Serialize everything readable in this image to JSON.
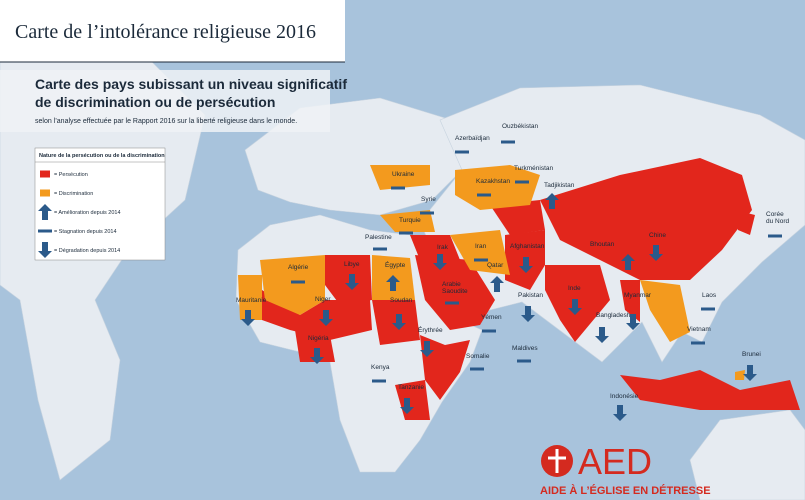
{
  "header": {
    "title": "Carte de l’intolérance religieuse 2016"
  },
  "subtitle": {
    "lines": [
      "Carte des pays subissant un niveau significatif",
      "de discrimination ou de persécution"
    ],
    "note": "selon l’analyse effectuée par le Rapport 2016 sur la liberté religieuse dans le monde."
  },
  "legend": {
    "title": "Nature de la persécution ou de la discrimination",
    "items": [
      "= Persécution",
      "= Discrimination",
      "= Amélioration depuis 2014",
      "= Stagnation depuis 2014",
      "= Dégradation depuis 2014"
    ]
  },
  "countries": [
    {
      "lines": [
        "Azerbaïdjan"
      ]
    },
    {
      "lines": [
        "Ouzbékistan"
      ]
    },
    {
      "lines": [
        "Turkménistan"
      ]
    },
    {
      "lines": [
        "Kazakhstan"
      ]
    },
    {
      "lines": [
        "Tadjikistan"
      ]
    },
    {
      "lines": [
        "Ukraine"
      ]
    },
    {
      "lines": [
        "Syrie"
      ]
    },
    {
      "lines": [
        "Turquie"
      ]
    },
    {
      "lines": [
        "Palestine"
      ]
    },
    {
      "lines": [
        "Irak"
      ]
    },
    {
      "lines": [
        "Iran"
      ]
    },
    {
      "lines": [
        "Afghanistan"
      ]
    },
    {
      "lines": [
        "Qatar"
      ]
    },
    {
      "lines": [
        "Égypte"
      ]
    },
    {
      "lines": [
        "Libye"
      ]
    },
    {
      "lines": [
        "Algérie"
      ]
    },
    {
      "lines": [
        "Mauritanie"
      ]
    },
    {
      "lines": [
        "Niger"
      ]
    },
    {
      "lines": [
        "Soudan"
      ]
    },
    {
      "lines": [
        "Arabie",
        "Saoudite"
      ]
    },
    {
      "lines": [
        "Érythrée"
      ]
    },
    {
      "lines": [
        "Nigéria"
      ]
    },
    {
      "lines": [
        "Yémen"
      ]
    },
    {
      "lines": [
        "Somalie"
      ]
    },
    {
      "lines": [
        "Kenya"
      ]
    },
    {
      "lines": [
        "Tanzanie"
      ]
    },
    {
      "lines": [
        "Pakistan"
      ]
    },
    {
      "lines": [
        "Inde"
      ]
    },
    {
      "lines": [
        "Bhoutan"
      ]
    },
    {
      "lines": [
        "Chine"
      ]
    },
    {
      "lines": [
        "Corée",
        "du Nord"
      ]
    },
    {
      "lines": [
        "Laos"
      ]
    },
    {
      "lines": [
        "Myanmar"
      ]
    },
    {
      "lines": [
        "Bangladesh"
      ]
    },
    {
      "lines": [
        "Vietnam"
      ]
    },
    {
      "lines": [
        "Maldives"
      ]
    },
    {
      "lines": [
        "Brunei"
      ]
    },
    {
      "lines": [
        "Indonésie"
      ]
    }
  ],
  "logo": {
    "name": "AED",
    "tagline": "AIDE À L’ÉGLISE EN DÉTRESSE"
  }
}
